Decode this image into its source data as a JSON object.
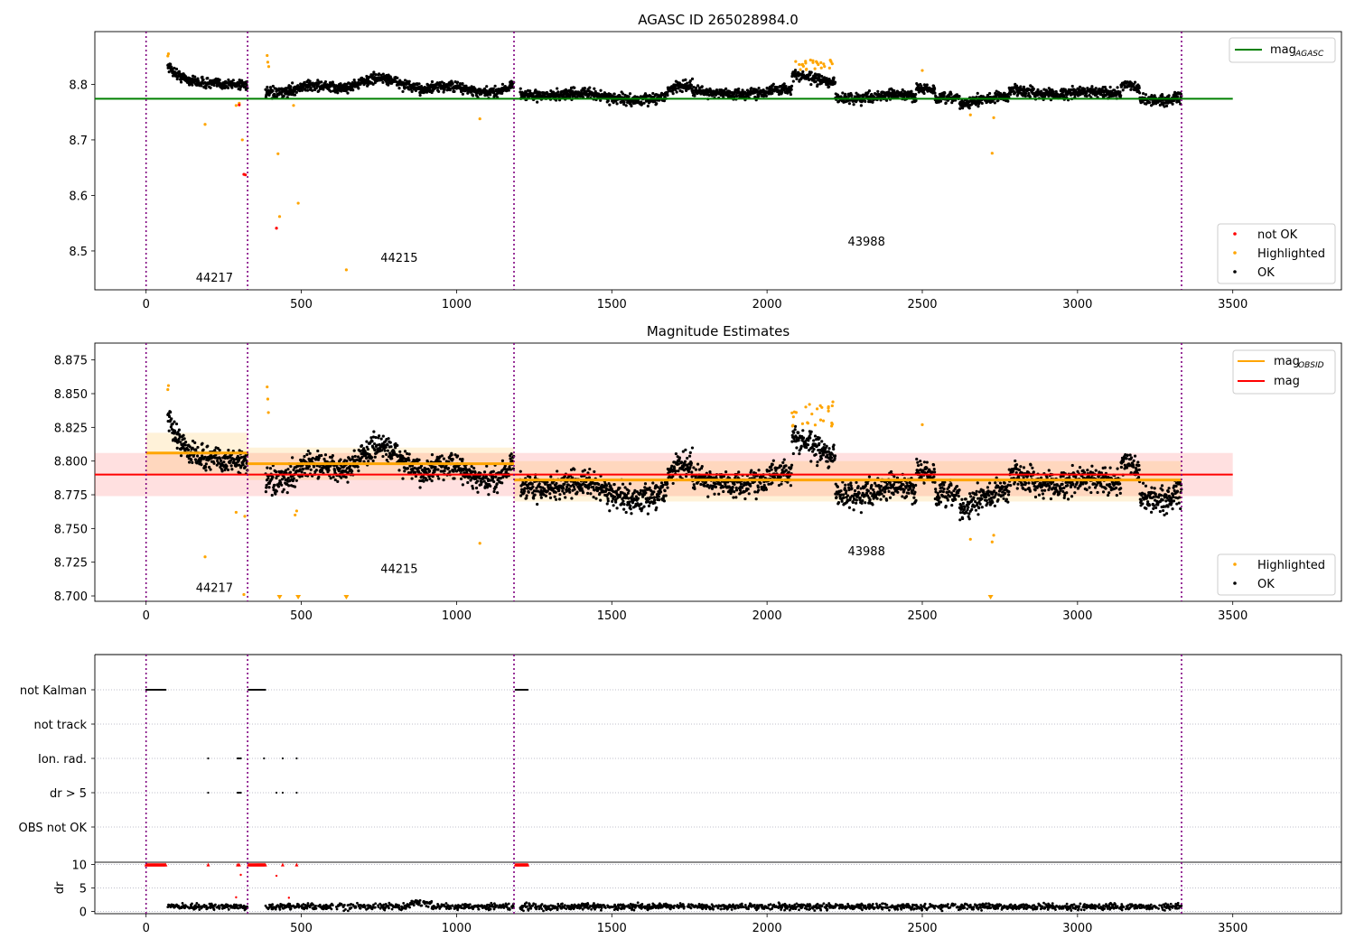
{
  "figure_title": "AGASC ID 265028984.0",
  "chart_data": [
    {
      "type": "scatter",
      "title": "AGASC ID 265028984.0",
      "xlim": [
        -165,
        3850
      ],
      "ylim": [
        8.43,
        8.895
      ],
      "xticks": [
        0,
        500,
        1000,
        1500,
        2000,
        2500,
        3000,
        3500
      ],
      "yticks": [
        8.5,
        8.6,
        8.7,
        8.8
      ],
      "ytick_labels": [
        "8.5",
        "8.6",
        "8.7",
        "8.8"
      ],
      "obsid_boundaries": [
        0,
        327,
        1185,
        3335
      ],
      "obsid_labels": [
        {
          "text": "44217",
          "x": 160,
          "y": 8.445
        },
        {
          "text": "44215",
          "x": 755,
          "y": 8.48
        },
        {
          "text": "43988",
          "x": 2260,
          "y": 8.51
        }
      ],
      "mag_agasc": 8.774,
      "series": [
        {
          "name": "OK",
          "color": "#000000"
        },
        {
          "name": "Highlighted",
          "color": "#ffa500",
          "points": [
            [
              70,
              8.851
            ],
            [
              72,
              8.855
            ],
            [
              190,
              8.728
            ],
            [
              290,
              8.762
            ],
            [
              300,
              8.766
            ],
            [
              310,
              8.7
            ],
            [
              390,
              8.852
            ],
            [
              392,
              8.84
            ],
            [
              395,
              8.832
            ],
            [
              425,
              8.675
            ],
            [
              430,
              8.562
            ],
            [
              475,
              8.762
            ],
            [
              490,
              8.586
            ],
            [
              645,
              8.466
            ],
            [
              1075,
              8.738
            ],
            [
              2500,
              8.825
            ],
            [
              2655,
              8.745
            ],
            [
              2725,
              8.676
            ],
            [
              2730,
              8.74
            ],
            [
              2210,
              8.837
            ]
          ]
        },
        {
          "name": "not OK",
          "color": "#ff0000",
          "points": [
            [
              300,
              8.763
            ],
            [
              315,
              8.638
            ],
            [
              320,
              8.637
            ],
            [
              420,
              8.541
            ]
          ]
        }
      ],
      "legend_upper": {
        "label": "mag",
        "sub": "AGASC",
        "position": "upper right"
      },
      "legend_lower": {
        "entries": [
          "not OK",
          "Highlighted",
          "OK"
        ],
        "position": "lower right"
      },
      "grid": false
    },
    {
      "type": "scatter",
      "title": "Magnitude Estimates",
      "xlim": [
        -165,
        3850
      ],
      "ylim": [
        8.696,
        8.8875
      ],
      "xticks": [
        0,
        500,
        1000,
        1500,
        2000,
        2500,
        3000,
        3500
      ],
      "yticks": [
        8.7,
        8.725,
        8.75,
        8.775,
        8.8,
        8.825,
        8.85,
        8.875
      ],
      "ytick_labels": [
        "8.700",
        "8.725",
        "8.750",
        "8.775",
        "8.800",
        "8.825",
        "8.850",
        "8.875"
      ],
      "obsid_boundaries": [
        0,
        327,
        1185,
        3335
      ],
      "obsid_labels": [
        {
          "text": "44217",
          "x": 160,
          "y": 8.703
        },
        {
          "text": "44215",
          "x": 755,
          "y": 8.717
        },
        {
          "text": "43988",
          "x": 2260,
          "y": 8.73
        }
      ],
      "mag": {
        "value": 8.79,
        "band": [
          8.774,
          8.806
        ],
        "x_range": [
          -165,
          3500
        ]
      },
      "mag_obsid": [
        {
          "x": [
            0,
            327
          ],
          "value": 8.806,
          "band": [
            8.79,
            8.821
          ]
        },
        {
          "x": [
            327,
            1185
          ],
          "value": 8.798,
          "band": [
            8.786,
            8.81
          ]
        },
        {
          "x": [
            1185,
            3335
          ],
          "value": 8.786,
          "band": [
            8.77,
            8.8
          ]
        }
      ],
      "series": [
        {
          "name": "OK",
          "color": "#000000"
        },
        {
          "name": "Highlighted",
          "color": "#ffa500",
          "points": [
            [
              70,
              8.853
            ],
            [
              72,
              8.856
            ],
            [
              190,
              8.729
            ],
            [
              290,
              8.762
            ],
            [
              315,
              8.701
            ],
            [
              318,
              8.759
            ],
            [
              390,
              8.855
            ],
            [
              392,
              8.846
            ],
            [
              394,
              8.836
            ],
            [
              480,
              8.76
            ],
            [
              485,
              8.763
            ],
            [
              1075,
              8.739
            ],
            [
              2500,
              8.827
            ],
            [
              2655,
              8.742
            ],
            [
              2725,
              8.74
            ],
            [
              2730,
              8.745
            ],
            [
              2210,
              8.841
            ],
            [
              2208,
              8.826
            ]
          ]
        }
      ],
      "offscale_markers": [
        430,
        490,
        645,
        2720
      ],
      "legend_upper": {
        "entries": [
          {
            "label": "mag",
            "sub": "OBSID",
            "color": "#ffa500"
          },
          {
            "label": "mag",
            "sub": "",
            "color": "#ff0000"
          }
        ],
        "position": "upper right"
      },
      "legend_lower": {
        "entries": [
          "Highlighted",
          "OK"
        ],
        "position": "lower right"
      },
      "grid": false
    },
    {
      "type": "scatter",
      "title": "",
      "xlim": [
        -165,
        3850
      ],
      "flag_rows": [
        "not Kalman",
        "not track",
        "Ion. rad.",
        "dr > 5",
        "OBS not OK"
      ],
      "flags": {
        "not Kalman": [
          [
            0,
            65
          ],
          [
            330,
            385
          ],
          [
            1190,
            1230
          ]
        ],
        "not track": [],
        "Ion. rad.": [
          200,
          295,
          300,
          305,
          380,
          440,
          485
        ],
        "dr > 5": [
          200,
          295,
          300,
          305,
          420,
          440,
          485
        ],
        "OBS not OK": []
      },
      "grid": true
    },
    {
      "type": "scatter",
      "title": "",
      "xlim": [
        -165,
        3850
      ],
      "ylabel": "dr",
      "ylim": [
        -0.5,
        10.5
      ],
      "yticks": [
        0,
        5,
        10
      ],
      "xticks": [
        0,
        500,
        1000,
        1500,
        2000,
        2500,
        3000,
        3500
      ],
      "clipped_marker_value": 10,
      "clipped_ranges": [
        [
          0,
          65
        ],
        [
          330,
          385
        ],
        [
          1190,
          1230
        ]
      ],
      "clipped_singles": [
        200,
        295,
        300,
        440,
        485
      ],
      "outliers": [
        [
          290,
          3.0
        ],
        [
          305,
          7.8
        ],
        [
          420,
          7.6
        ],
        [
          460,
          2.9
        ]
      ],
      "grid": true
    }
  ]
}
